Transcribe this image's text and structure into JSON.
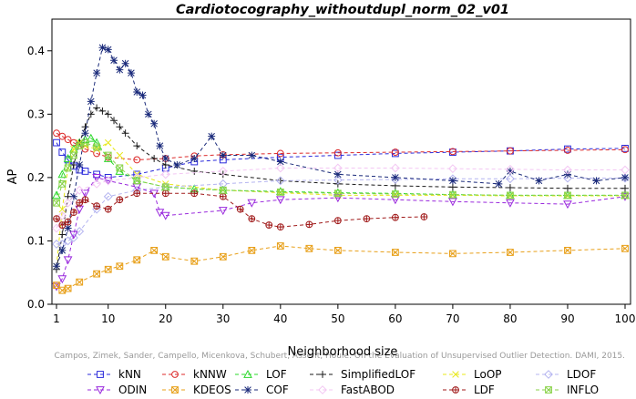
{
  "chart_data": {
    "type": "line",
    "title": "Cardiotocography_withoutdupl_norm_02_v01",
    "xlabel": "Neighborhood size",
    "ylabel": "AP",
    "xlim": [
      1,
      100
    ],
    "ylim": [
      0,
      0.45
    ],
    "x_ticks": [
      1,
      10,
      20,
      30,
      40,
      50,
      60,
      70,
      80,
      90,
      100
    ],
    "y_ticks": [
      0.0,
      0.1,
      0.2,
      0.3,
      0.4
    ],
    "grid": false,
    "legend_position": "bottom",
    "watermark": "Campos, Zimek, Sander, Campello, Micenkova, Schubert, Assent, Houle: On the Evaluation of Unsupervised Outlier Detection. DAMI, 2015.",
    "series": [
      {
        "name": "kNN",
        "color": "#2a2adb",
        "marker": "square",
        "x": [
          1,
          2,
          3,
          4,
          5,
          6,
          8,
          10,
          15,
          20,
          25,
          30,
          40,
          50,
          60,
          70,
          80,
          90,
          100
        ],
        "y": [
          0.255,
          0.24,
          0.228,
          0.218,
          0.212,
          0.21,
          0.205,
          0.2,
          0.205,
          0.215,
          0.225,
          0.228,
          0.232,
          0.235,
          0.238,
          0.24,
          0.242,
          0.245,
          0.246
        ]
      },
      {
        "name": "kNNW",
        "color": "#dc2a2a",
        "marker": "circle",
        "x": [
          1,
          2,
          3,
          4,
          5,
          6,
          8,
          10,
          15,
          20,
          25,
          30,
          40,
          50,
          60,
          70,
          80,
          90,
          100
        ],
        "y": [
          0.27,
          0.265,
          0.26,
          0.255,
          0.25,
          0.245,
          0.238,
          0.232,
          0.228,
          0.23,
          0.234,
          0.236,
          0.238,
          0.239,
          0.24,
          0.241,
          0.242,
          0.243,
          0.244
        ]
      },
      {
        "name": "LOF",
        "color": "#2ad82a",
        "marker": "triangle",
        "x": [
          1,
          2,
          3,
          4,
          5,
          6,
          7,
          8,
          10,
          12,
          15,
          20,
          25,
          30,
          40,
          50,
          60,
          70,
          80,
          90,
          100
        ],
        "y": [
          0.172,
          0.205,
          0.23,
          0.245,
          0.255,
          0.26,
          0.262,
          0.255,
          0.23,
          0.21,
          0.195,
          0.185,
          0.182,
          0.18,
          0.178,
          0.176,
          0.175,
          0.173,
          0.172,
          0.172,
          0.172
        ]
      },
      {
        "name": "SimplifiedLOF",
        "color": "#1a1a1a",
        "marker": "plus",
        "x": [
          1,
          2,
          3,
          4,
          5,
          6,
          7,
          8,
          9,
          10,
          11,
          12,
          13,
          15,
          18,
          20,
          25,
          30,
          40,
          50,
          60,
          70,
          80,
          90,
          100
        ],
        "y": [
          0.055,
          0.11,
          0.17,
          0.22,
          0.255,
          0.28,
          0.3,
          0.31,
          0.305,
          0.3,
          0.29,
          0.28,
          0.27,
          0.25,
          0.23,
          0.22,
          0.21,
          0.205,
          0.195,
          0.19,
          0.187,
          0.185,
          0.184,
          0.183,
          0.183
        ]
      },
      {
        "name": "LoOP",
        "color": "#e8e81a",
        "marker": "x",
        "x": [
          1,
          2,
          3,
          4,
          5,
          6,
          8,
          10,
          12,
          15,
          20,
          30,
          40,
          50,
          60,
          70,
          80,
          90,
          100
        ],
        "y": [
          0.06,
          0.15,
          0.215,
          0.245,
          0.255,
          0.25,
          0.245,
          0.255,
          0.235,
          0.205,
          0.19,
          0.18,
          0.176,
          0.172,
          0.172,
          0.172,
          0.171,
          0.171,
          0.171
        ]
      },
      {
        "name": "LDOF",
        "color": "#b4b4f0",
        "marker": "diamond",
        "x": [
          1,
          2,
          3,
          4,
          5,
          8,
          10,
          15,
          20,
          30,
          40,
          50,
          60,
          70,
          80,
          90,
          100
        ],
        "y": [
          0.095,
          0.095,
          0.1,
          0.105,
          0.115,
          0.15,
          0.17,
          0.18,
          0.185,
          0.19,
          0.195,
          0.196,
          0.197,
          0.198,
          0.198,
          0.199,
          0.199
        ]
      },
      {
        "name": "ODIN",
        "color": "#9a2add",
        "marker": "triangle-down",
        "x": [
          1,
          2,
          3,
          4,
          5,
          6,
          8,
          10,
          15,
          18,
          19,
          20,
          30,
          35,
          40,
          50,
          60,
          70,
          80,
          90,
          100
        ],
        "y": [
          0.028,
          0.04,
          0.07,
          0.11,
          0.15,
          0.175,
          0.2,
          0.195,
          0.185,
          0.175,
          0.145,
          0.14,
          0.148,
          0.16,
          0.165,
          0.168,
          0.165,
          0.162,
          0.16,
          0.158,
          0.17
        ]
      },
      {
        "name": "KDEOS",
        "color": "#e8a01a",
        "marker": "square-x",
        "x": [
          1,
          2,
          3,
          5,
          8,
          10,
          12,
          15,
          18,
          20,
          25,
          30,
          35,
          40,
          45,
          50,
          60,
          70,
          80,
          90,
          100
        ],
        "y": [
          0.03,
          0.022,
          0.025,
          0.035,
          0.048,
          0.055,
          0.06,
          0.07,
          0.085,
          0.075,
          0.068,
          0.075,
          0.085,
          0.092,
          0.088,
          0.085,
          0.082,
          0.08,
          0.082,
          0.085,
          0.088
        ]
      },
      {
        "name": "COF",
        "color": "#1a2a7a",
        "marker": "asterisk",
        "x": [
          1,
          2,
          3,
          4,
          5,
          6,
          7,
          8,
          9,
          10,
          11,
          12,
          13,
          14,
          15,
          16,
          17,
          18,
          19,
          20,
          22,
          25,
          28,
          30,
          35,
          40,
          50,
          60,
          70,
          78,
          80,
          85,
          90,
          95,
          100
        ],
        "y": [
          0.06,
          0.085,
          0.12,
          0.17,
          0.22,
          0.27,
          0.32,
          0.365,
          0.405,
          0.402,
          0.385,
          0.37,
          0.38,
          0.365,
          0.335,
          0.33,
          0.3,
          0.285,
          0.25,
          0.23,
          0.22,
          0.23,
          0.265,
          0.235,
          0.235,
          0.225,
          0.205,
          0.2,
          0.195,
          0.19,
          0.21,
          0.195,
          0.205,
          0.195,
          0.2
        ]
      },
      {
        "name": "FastABOD",
        "color": "#f3c7f3",
        "marker": "diamond",
        "x": [
          1,
          2,
          3,
          5,
          8,
          10,
          15,
          20,
          30,
          40,
          50,
          60,
          70,
          80,
          90,
          100
        ],
        "y": [
          0.12,
          0.14,
          0.16,
          0.18,
          0.19,
          0.195,
          0.2,
          0.205,
          0.21,
          0.215,
          0.215,
          0.215,
          0.214,
          0.213,
          0.212,
          0.212
        ]
      },
      {
        "name": "LDF",
        "color": "#a01a1a",
        "marker": "circle-plus",
        "x": [
          1,
          2,
          3,
          4,
          5,
          6,
          8,
          10,
          12,
          15,
          20,
          25,
          30,
          33,
          35,
          38,
          40,
          45,
          50,
          55,
          60,
          65
        ],
        "y": [
          0.135,
          0.125,
          0.13,
          0.145,
          0.16,
          0.165,
          0.155,
          0.15,
          0.165,
          0.175,
          0.175,
          0.175,
          0.17,
          0.15,
          0.135,
          0.125,
          0.122,
          0.126,
          0.132,
          0.135,
          0.137,
          0.138
        ]
      },
      {
        "name": "INFLO",
        "color": "#8ad24a",
        "marker": "square-x",
        "x": [
          1,
          2,
          3,
          4,
          5,
          6,
          8,
          10,
          12,
          15,
          20,
          30,
          40,
          50,
          60,
          70,
          80,
          90,
          100
        ],
        "y": [
          0.16,
          0.19,
          0.215,
          0.235,
          0.25,
          0.255,
          0.248,
          0.235,
          0.215,
          0.195,
          0.185,
          0.18,
          0.177,
          0.175,
          0.174,
          0.173,
          0.172,
          0.172,
          0.172
        ]
      }
    ]
  }
}
